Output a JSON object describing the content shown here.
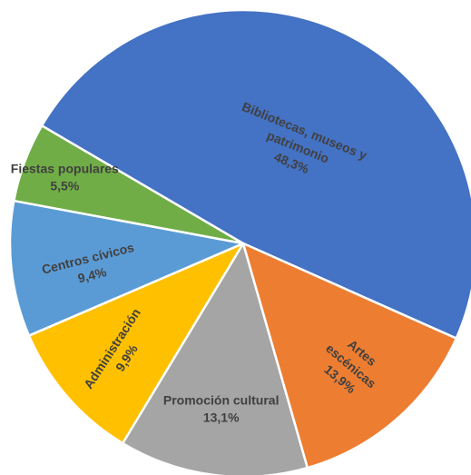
{
  "chart_data": {
    "type": "pie",
    "title": "",
    "start_angle_deg": 164,
    "direction": "clockwise",
    "colors": [
      "#9E9E9E",
      "#FFC000",
      "#5B9BD5",
      "#70AD47",
      "#4472C4",
      "#ED7D31"
    ],
    "slices": [
      {
        "label": "Promoción cultural",
        "value": 13.1,
        "value_label": "13,1%",
        "color": "#A5A5A5"
      },
      {
        "label": "Administración",
        "value": 9.9,
        "value_label": "9,9%",
        "color": "#FFC000"
      },
      {
        "label": "Centros cívicos",
        "value": 9.4,
        "value_label": "9,4%",
        "color": "#5B9BD5"
      },
      {
        "label": "Fiestas populares",
        "value": 5.5,
        "value_label": "5,5%",
        "color": "#70AD47"
      },
      {
        "label": "Bibliotecas, museos y patrimonio",
        "value": 48.3,
        "value_label": "48,3%",
        "color": "#4472C4"
      },
      {
        "label": "Artes escénicas",
        "value": 13.9,
        "value_label": "13,9%",
        "color": "#ED7D31"
      }
    ]
  }
}
